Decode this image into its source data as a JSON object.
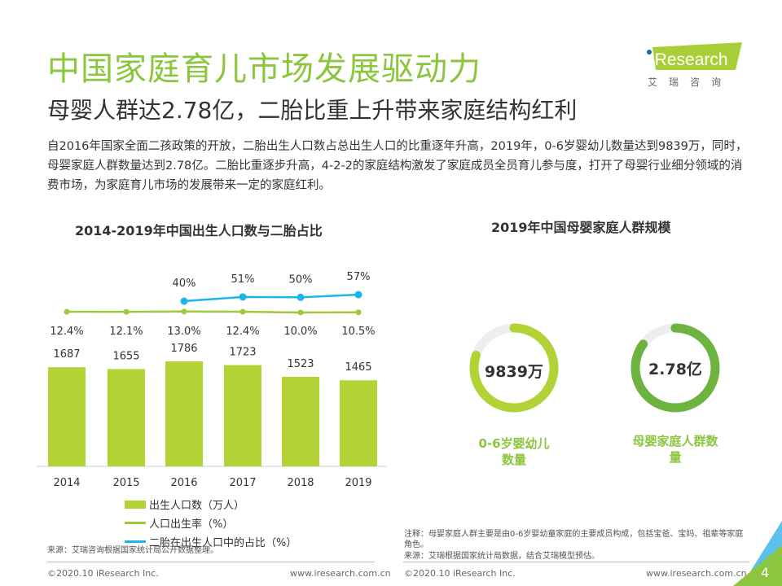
{
  "header": {
    "title": "中国家庭育儿市场发展驱动力",
    "subtitle": "母婴人群达2.78亿，二胎比重上升带来家庭结构红利",
    "intro": "自2016年国家全面二孩政策的开放，二胎出生人口数占总出生人口的比重逐年升高，2019年，0-6岁婴幼儿数量达到9839万，同时，母婴家庭人群数量达到2.78亿。二胎比重逐步升高，4-2-2的家庭结构激发了家庭成员全员育儿参与度，打开了母婴行业细分领域的消费市场，为家庭育儿市场的发展带来一定的家庭红利。"
  },
  "logo": {
    "text": "iResearch",
    "cn": "艾瑞咨询"
  },
  "colors": {
    "green": "#8cc63f",
    "bar": "#b2d235",
    "line": "#9dc93a",
    "blue": "#1cb5e8",
    "dark_green": "#6cb33f",
    "gray": "#eeeeee"
  },
  "chart_data": [
    {
      "type": "bar+line",
      "title": "2014-2019年中国出生人口数与二胎占比",
      "categories": [
        "2014",
        "2015",
        "2016",
        "2017",
        "2018",
        "2019"
      ],
      "series": [
        {
          "name": "出生人口数（万人）",
          "type": "bar",
          "values": [
            1687,
            1655,
            1786,
            1723,
            1523,
            1465
          ],
          "labels": [
            "1687",
            "1655",
            "1786",
            "1723",
            "1523",
            "1465"
          ]
        },
        {
          "name": "人口出生率（%）",
          "type": "line",
          "values": [
            12.4,
            12.1,
            13.0,
            12.4,
            10.0,
            10.5
          ],
          "labels": [
            "12.4%",
            "12.1%",
            "13.0%",
            "12.4%",
            "10.0%",
            "10.5%"
          ]
        },
        {
          "name": "二胎在出生人口中的占比（%）",
          "type": "line",
          "values": [
            null,
            null,
            40,
            51,
            50,
            57
          ],
          "labels": [
            "",
            "",
            "40%",
            "51%",
            "50%",
            "57%"
          ]
        }
      ],
      "source": "来源：艾瑞咨询根据国家统计局公开数据整理。"
    },
    {
      "type": "donut",
      "title": "2019年中国母婴家庭人群规模",
      "items": [
        {
          "value": "9839万",
          "label": "0-6岁婴幼儿数量",
          "fill": 0.8
        },
        {
          "value": "2.78亿",
          "label": "母婴家庭人群数量",
          "fill": 0.85
        }
      ],
      "note": "注释：母婴家庭人群主要是由0-6岁婴幼童家庭的主要成员构成，包括宝爸、宝妈、祖辈等家庭角色。",
      "source": "来源：艾瑞根据国家统计局数据，结合艾瑞模型预估。"
    }
  ],
  "footer": {
    "copyright": "©2020.10 iResearch Inc.",
    "url": "www.iresearch.com.cn",
    "page": "4"
  }
}
